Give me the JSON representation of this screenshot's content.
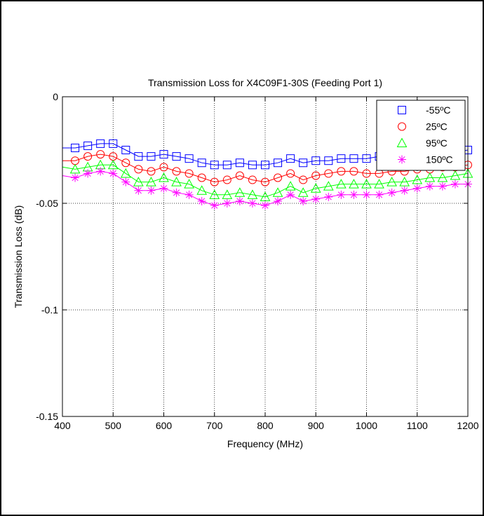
{
  "chart_data": {
    "type": "line",
    "title": "Transmission Loss for X4C09F1-30S (Feeding Port 1)",
    "xlabel": "Frequency (MHz)",
    "ylabel": "Transmission Loss (dB)",
    "xlim": [
      400,
      1200
    ],
    "ylim": [
      -0.15,
      0
    ],
    "xticks": [
      400,
      500,
      600,
      700,
      800,
      900,
      1000,
      1100,
      1200
    ],
    "yticks": [
      0,
      -0.05,
      -0.1,
      -0.15
    ],
    "xtick_labels": [
      "400",
      "500",
      "600",
      "700",
      "800",
      "900",
      "1000",
      "1100",
      "1200"
    ],
    "ytick_labels": [
      "0",
      "-0.05",
      "-0.1",
      "-0.15"
    ],
    "grid": true,
    "legend_position": "top-right",
    "x": [
      400,
      425,
      450,
      475,
      500,
      525,
      550,
      575,
      600,
      625,
      650,
      675,
      700,
      725,
      750,
      775,
      800,
      825,
      850,
      875,
      900,
      925,
      950,
      975,
      1000,
      1025,
      1050,
      1075,
      1100,
      1125,
      1150,
      1175,
      1200
    ],
    "series": [
      {
        "name": "-55ºC",
        "color": "#0000ff",
        "marker": "square",
        "values": [
          -0.024,
          -0.024,
          -0.023,
          -0.022,
          -0.022,
          -0.025,
          -0.028,
          -0.028,
          -0.027,
          -0.028,
          -0.029,
          -0.031,
          -0.032,
          -0.032,
          -0.031,
          -0.032,
          -0.032,
          -0.031,
          -0.029,
          -0.031,
          -0.03,
          -0.03,
          -0.029,
          -0.029,
          -0.029,
          -0.028,
          -0.028,
          -0.028,
          -0.028,
          -0.027,
          -0.027,
          -0.026,
          -0.025
        ]
      },
      {
        "name": "25ºC",
        "color": "#ff0000",
        "marker": "circle",
        "values": [
          -0.03,
          -0.03,
          -0.028,
          -0.027,
          -0.028,
          -0.031,
          -0.034,
          -0.035,
          -0.033,
          -0.035,
          -0.036,
          -0.038,
          -0.04,
          -0.039,
          -0.037,
          -0.039,
          -0.04,
          -0.038,
          -0.036,
          -0.039,
          -0.037,
          -0.036,
          -0.035,
          -0.035,
          -0.036,
          -0.036,
          -0.035,
          -0.035,
          -0.034,
          -0.034,
          -0.033,
          -0.033,
          -0.032
        ]
      },
      {
        "name": "95ºC",
        "color": "#00ff00",
        "marker": "triangle",
        "values": [
          -0.033,
          -0.034,
          -0.033,
          -0.032,
          -0.032,
          -0.036,
          -0.04,
          -0.04,
          -0.038,
          -0.04,
          -0.041,
          -0.044,
          -0.046,
          -0.046,
          -0.045,
          -0.046,
          -0.047,
          -0.045,
          -0.042,
          -0.045,
          -0.043,
          -0.042,
          -0.041,
          -0.041,
          -0.041,
          -0.041,
          -0.04,
          -0.04,
          -0.039,
          -0.038,
          -0.038,
          -0.037,
          -0.036
        ]
      },
      {
        "name": "150ºC",
        "color": "#ff00ff",
        "marker": "asterisk",
        "values": [
          -0.037,
          -0.038,
          -0.036,
          -0.035,
          -0.036,
          -0.04,
          -0.044,
          -0.044,
          -0.043,
          -0.045,
          -0.046,
          -0.049,
          -0.051,
          -0.05,
          -0.049,
          -0.05,
          -0.051,
          -0.049,
          -0.046,
          -0.049,
          -0.048,
          -0.047,
          -0.046,
          -0.046,
          -0.046,
          -0.046,
          -0.045,
          -0.044,
          -0.043,
          -0.042,
          -0.042,
          -0.041,
          -0.041
        ]
      }
    ]
  }
}
